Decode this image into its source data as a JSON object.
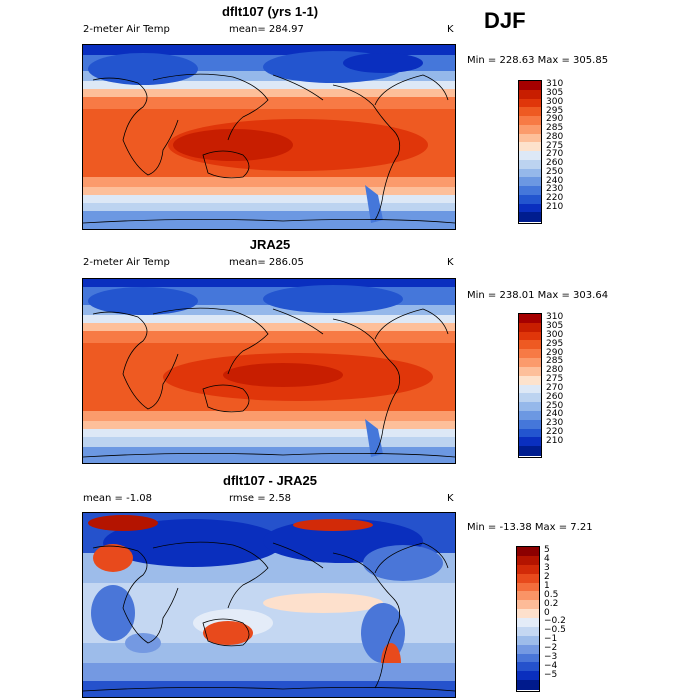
{
  "season": "DJF",
  "panels": [
    {
      "title": "dflt107 (yrs 1-1)",
      "left_label": "2-meter Air Temp",
      "center_label": "mean= 284.97",
      "unit": "K",
      "range_label": "Min = 228.63 Max = 305.85",
      "colorbar": {
        "labels": [
          "310",
          "305",
          "300",
          "295",
          "290",
          "285",
          "280",
          "275",
          "270",
          "260",
          "250",
          "240",
          "230",
          "220",
          "210"
        ],
        "colors": [
          "#a50000",
          "#c81e00",
          "#e0360a",
          "#ee5a22",
          "#f77a45",
          "#fb9b6c",
          "#fdbf9a",
          "#fde2cc",
          "#dde8f6",
          "#bcd3f0",
          "#95b8ea",
          "#6c98e2",
          "#4577da",
          "#2355cf",
          "#0a2fbf",
          "#001d8f"
        ]
      }
    },
    {
      "title": "JRA25",
      "left_label": "2-meter Air Temp",
      "center_label": "mean= 286.05",
      "unit": "K",
      "range_label": "Min = 238.01 Max = 303.64",
      "colorbar": {
        "labels": [
          "310",
          "305",
          "300",
          "295",
          "290",
          "285",
          "280",
          "275",
          "270",
          "260",
          "250",
          "240",
          "230",
          "220",
          "210"
        ],
        "colors": [
          "#a50000",
          "#c81e00",
          "#e0360a",
          "#ee5a22",
          "#f77a45",
          "#fb9b6c",
          "#fdbf9a",
          "#fde2cc",
          "#dde8f6",
          "#bcd3f0",
          "#95b8ea",
          "#6c98e2",
          "#4577da",
          "#2355cf",
          "#0a2fbf",
          "#001d8f"
        ]
      }
    },
    {
      "title": "dflt107 - JRA25",
      "left_label": "mean =  -1.08",
      "center_label": "rmse =   2.58",
      "unit": "K",
      "range_label": "Min = -13.38 Max =   7.21",
      "colorbar": {
        "labels": [
          "5",
          "4",
          "3",
          "2",
          "1",
          "0.5",
          "0.2",
          "0",
          "−0.2",
          "−0.5",
          "−1",
          "−2",
          "−3",
          "−4",
          "−5"
        ],
        "colors": [
          "#8c0000",
          "#b41400",
          "#d22a08",
          "#e84a1c",
          "#f46e3c",
          "#fa9466",
          "#fdbb98",
          "#fde0cc",
          "#e4ecf8",
          "#c4d7f2",
          "#9dbcea",
          "#7499e2",
          "#4a76d8",
          "#2552cc",
          "#0a2fbe",
          "#001a8c"
        ]
      }
    }
  ]
}
